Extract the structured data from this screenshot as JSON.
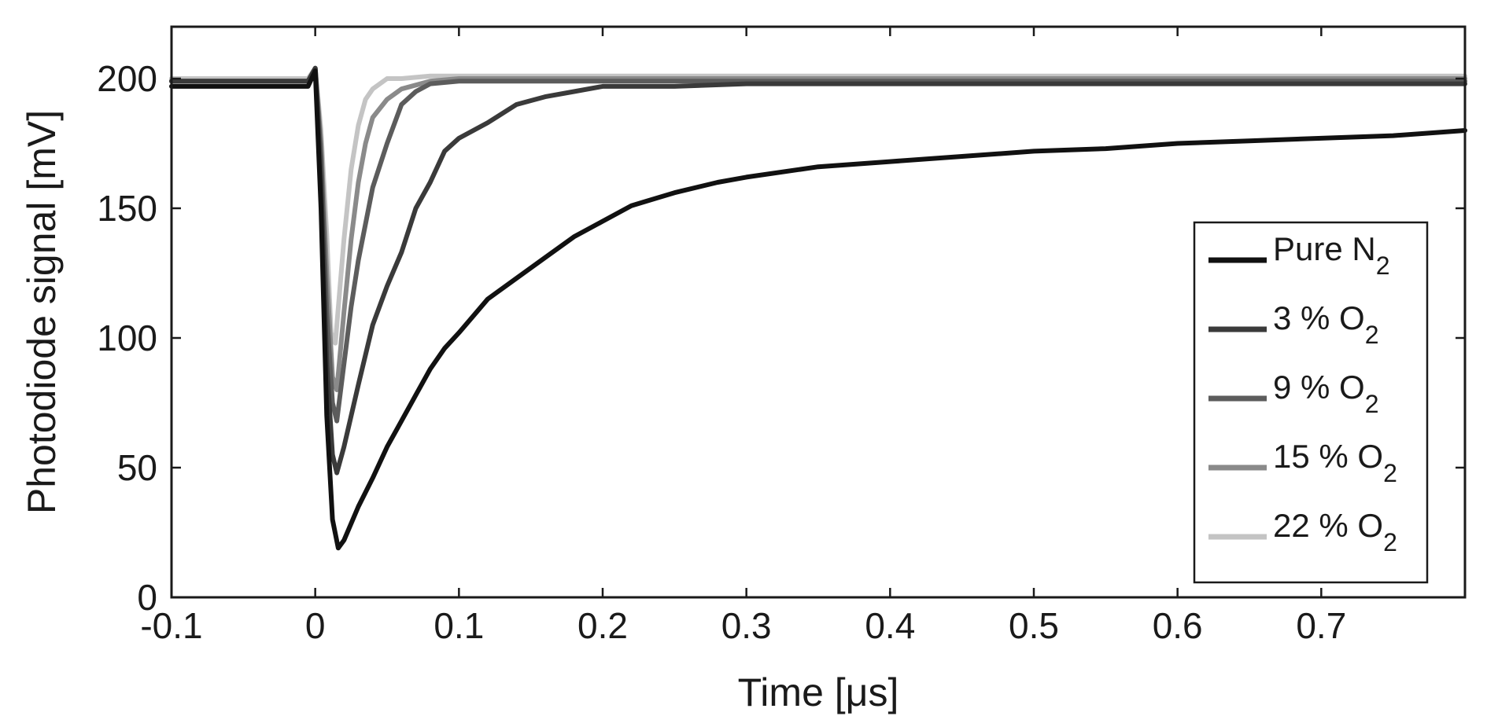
{
  "chart_data": {
    "type": "line",
    "title": "",
    "xlabel": "Time [μs]",
    "ylabel": "Photodiode signal [mV]",
    "xlim": [
      -0.1,
      0.8
    ],
    "ylim": [
      0,
      220
    ],
    "xticks": [
      -0.1,
      0,
      0.1,
      0.2,
      0.3,
      0.4,
      0.5,
      0.6,
      0.7
    ],
    "xtick_labels": [
      "-0.1",
      "0",
      "0.1",
      "0.2",
      "0.3",
      "0.4",
      "0.5",
      "0.6",
      "0.7"
    ],
    "yticks": [
      0,
      50,
      100,
      150,
      200
    ],
    "ytick_labels": [
      "0",
      "50",
      "100",
      "150",
      "200"
    ],
    "grid": false,
    "legend_position": "right",
    "series": [
      {
        "name": "Pure N2",
        "label_main": "Pure N",
        "label_sub": "2",
        "color": "#111111",
        "x": [
          -0.1,
          -0.05,
          -0.005,
          0.0,
          0.004,
          0.008,
          0.012,
          0.016,
          0.02,
          0.03,
          0.04,
          0.05,
          0.06,
          0.07,
          0.08,
          0.09,
          0.1,
          0.12,
          0.14,
          0.16,
          0.18,
          0.2,
          0.22,
          0.25,
          0.28,
          0.3,
          0.35,
          0.4,
          0.45,
          0.5,
          0.55,
          0.6,
          0.65,
          0.7,
          0.75,
          0.8
        ],
        "y": [
          197,
          197,
          197,
          203,
          150,
          70,
          30,
          19,
          22,
          35,
          46,
          58,
          68,
          78,
          88,
          96,
          102,
          115,
          123,
          131,
          139,
          145,
          151,
          156,
          160,
          162,
          166,
          168,
          170,
          172,
          173,
          175,
          176,
          177,
          178,
          180
        ]
      },
      {
        "name": "3 % O2",
        "label_main": "3 % O",
        "label_sub": "2",
        "color": "#3a3a3a",
        "x": [
          -0.1,
          -0.05,
          -0.005,
          0.0,
          0.004,
          0.008,
          0.012,
          0.015,
          0.02,
          0.03,
          0.04,
          0.05,
          0.06,
          0.07,
          0.08,
          0.09,
          0.1,
          0.12,
          0.14,
          0.16,
          0.18,
          0.2,
          0.22,
          0.25,
          0.3,
          0.4,
          0.5,
          0.6,
          0.7,
          0.8
        ],
        "y": [
          199,
          199,
          199,
          204,
          160,
          90,
          55,
          48,
          58,
          82,
          105,
          120,
          133,
          150,
          160,
          172,
          177,
          183,
          190,
          193,
          195,
          197,
          197,
          197,
          198,
          198,
          198,
          198,
          198,
          198
        ]
      },
      {
        "name": "9 % O2",
        "label_main": "9 % O",
        "label_sub": "2",
        "color": "#5c5c5c",
        "x": [
          -0.1,
          -0.05,
          -0.005,
          0.0,
          0.004,
          0.008,
          0.012,
          0.015,
          0.02,
          0.025,
          0.03,
          0.04,
          0.05,
          0.06,
          0.07,
          0.08,
          0.1,
          0.15,
          0.2,
          0.3,
          0.4,
          0.5,
          0.6,
          0.7,
          0.8
        ],
        "y": [
          199,
          199,
          199,
          204,
          170,
          110,
          75,
          68,
          90,
          112,
          130,
          158,
          175,
          190,
          195,
          198,
          199,
          199,
          199,
          199,
          199,
          199,
          199,
          199,
          199
        ]
      },
      {
        "name": "15 % O2",
        "label_main": "15 % O",
        "label_sub": "2",
        "color": "#8a8a8a",
        "x": [
          -0.1,
          -0.05,
          -0.005,
          0.0,
          0.004,
          0.008,
          0.012,
          0.015,
          0.02,
          0.025,
          0.03,
          0.035,
          0.04,
          0.05,
          0.06,
          0.08,
          0.1,
          0.15,
          0.2,
          0.3,
          0.4,
          0.5,
          0.6,
          0.7,
          0.8
        ],
        "y": [
          199,
          199,
          199,
          204,
          175,
          125,
          85,
          80,
          110,
          138,
          160,
          175,
          185,
          192,
          196,
          199,
          200,
          200,
          200,
          200,
          200,
          200,
          200,
          200,
          200
        ]
      },
      {
        "name": "22 % O2",
        "label_main": "22 % O",
        "label_sub": "2",
        "color": "#c4c4c4",
        "x": [
          -0.1,
          -0.05,
          -0.005,
          0.0,
          0.004,
          0.008,
          0.011,
          0.014,
          0.02,
          0.025,
          0.03,
          0.035,
          0.04,
          0.05,
          0.06,
          0.08,
          0.1,
          0.15,
          0.2,
          0.3,
          0.4,
          0.5,
          0.6,
          0.7,
          0.8
        ],
        "y": [
          200,
          200,
          200,
          204,
          180,
          140,
          102,
          98,
          138,
          165,
          182,
          192,
          196,
          200,
          200,
          201,
          201,
          201,
          201,
          201,
          201,
          201,
          201,
          201,
          201
        ]
      }
    ]
  }
}
